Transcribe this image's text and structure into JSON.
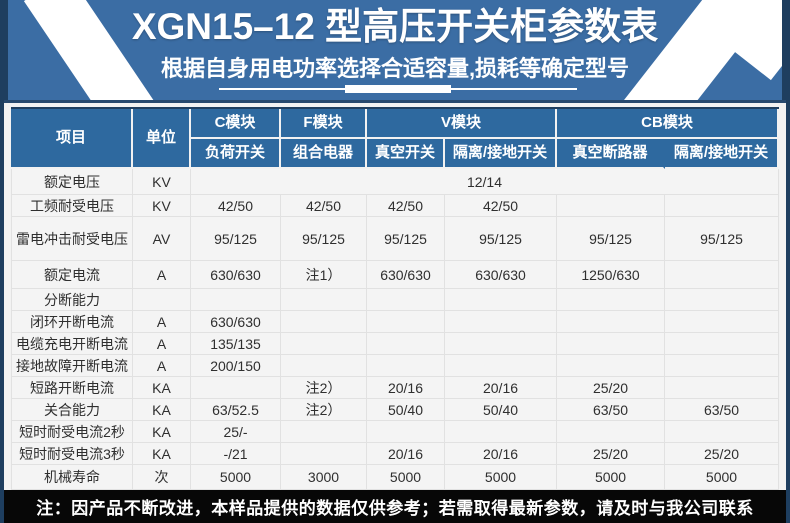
{
  "banner": {
    "title": "XGN15–12 型高压开关柜参数表",
    "subtitle": "根据自身用电功率选择合适容量,损耗等确定型号"
  },
  "colors": {
    "banner_blue": "#3b6da4",
    "header_blue": "#2e699f",
    "edge_navy": "#1e3e5f",
    "body_bg": "#f4f4f4",
    "footer_black": "#070707",
    "stripe_white": "#ffffff"
  },
  "table": {
    "header": {
      "item": "项目",
      "unit": "单位",
      "groups": [
        {
          "label": "C模块",
          "sub": [
            "负荷开关"
          ]
        },
        {
          "label": "F模块",
          "sub": [
            "组合电器"
          ]
        },
        {
          "label": "V模块",
          "sub": [
            "真空开关",
            "隔离/接地开关"
          ]
        },
        {
          "label": "CB模块",
          "sub": [
            "真空断路器",
            "隔离/接地开关"
          ]
        }
      ]
    },
    "rows": [
      {
        "label": "额定电压",
        "unit": "KV",
        "merged": "12/14"
      },
      {
        "label": "工频耐受电压",
        "unit": "KV",
        "values": [
          "42/50",
          "42/50",
          "42/50",
          "42/50",
          "",
          ""
        ]
      },
      {
        "label": "雷电冲击耐受电压",
        "unit": "AV",
        "values": [
          "95/125",
          "95/125",
          "95/125",
          "95/125",
          "95/125",
          "95/125"
        ]
      },
      {
        "label": "额定电流",
        "unit": "A",
        "values": [
          "630/630",
          "注1）",
          "630/630",
          "630/630",
          "1250/630",
          ""
        ]
      },
      {
        "label": "分断能力",
        "unit": "",
        "values": [
          "",
          "",
          "",
          "",
          "",
          ""
        ]
      },
      {
        "label": "闭环开断电流",
        "unit": "A",
        "values": [
          "630/630",
          "",
          "",
          "",
          "",
          ""
        ]
      },
      {
        "label": "电缆充电开断电流",
        "unit": "A",
        "values": [
          "135/135",
          "",
          "",
          "",
          "",
          ""
        ]
      },
      {
        "label": "接地故障开断电流",
        "unit": "A",
        "values": [
          "200/150",
          "",
          "",
          "",
          "",
          ""
        ]
      },
      {
        "label": "短路开断电流",
        "unit": "KA",
        "values": [
          "",
          "注2）",
          "20/16",
          "20/16",
          "25/20",
          ""
        ]
      },
      {
        "label": "关合能力",
        "unit": "KA",
        "values": [
          "63/52.5",
          "注2）",
          "50/40",
          "50/40",
          "63/50",
          "63/50"
        ]
      },
      {
        "label": "短时耐受电流2秒",
        "unit": "KA",
        "values": [
          "25/-",
          "",
          "",
          "",
          "",
          ""
        ]
      },
      {
        "label": "短时耐受电流3秒",
        "unit": "KA",
        "values": [
          "-/21",
          "",
          "20/16",
          "20/16",
          "25/20",
          "25/20"
        ]
      },
      {
        "label": "机械寿命",
        "unit": "次",
        "values": [
          "5000",
          "3000",
          "5000",
          "5000",
          "5000",
          "5000"
        ]
      }
    ]
  },
  "footer": {
    "note": "注：因产品不断改进，本样品提供的数据仅供参考；若需取得最新参数，请及时与我公司联系"
  }
}
